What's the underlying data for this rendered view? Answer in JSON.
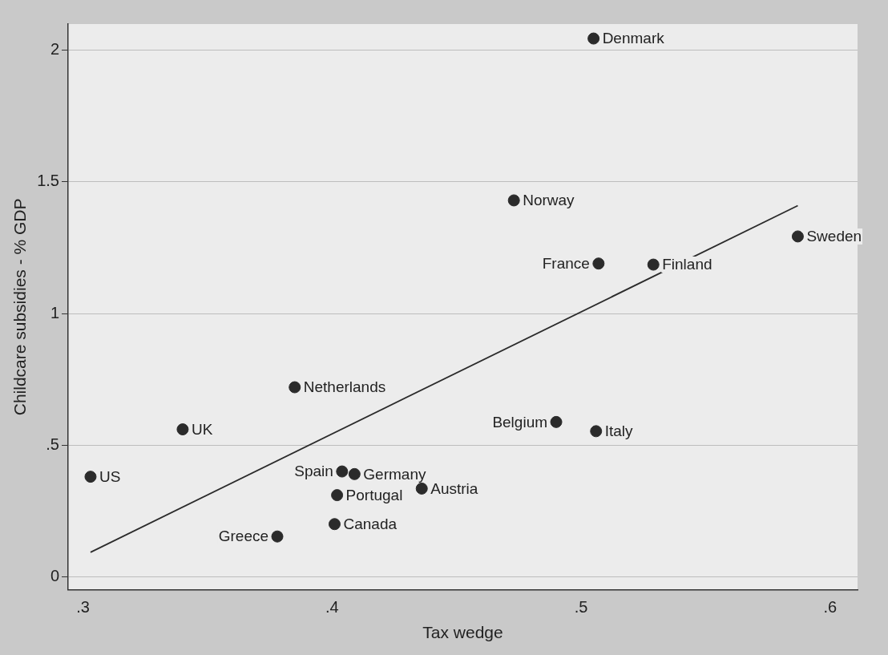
{
  "chart_data": {
    "type": "scatter",
    "xlabel": "Tax wedge",
    "ylabel": "Childcare subsidies - % GDP",
    "series": [
      {
        "color": "#2b2b2b",
        "x": [
          0.303,
          0.34,
          0.385,
          0.404,
          0.409,
          0.402,
          0.436,
          0.401,
          0.378,
          0.505,
          0.473,
          0.587,
          0.507,
          0.529,
          0.49,
          0.506
        ],
        "values": [
          0.38,
          0.56,
          0.72,
          0.4,
          0.39,
          0.31,
          0.335,
          0.2,
          0.153,
          2.045,
          1.43,
          1.293,
          1.19,
          1.186,
          0.588,
          0.553
        ],
        "value_labels": [
          "US",
          "UK",
          "Netherlands",
          "Spain",
          "Germany",
          "Portugal",
          "Austria",
          "Canada",
          "Greece",
          "Denmark",
          "Norway",
          "Sweden",
          "France",
          "Finland",
          "Belgium",
          "Italy"
        ]
      },
      {
        "type": "line",
        "color": "#2b2b2b",
        "x": [
          0.303,
          0.587
        ],
        "values": [
          0.093,
          1.41
        ],
        "marker": "none"
      }
    ],
    "xlim": [
      0.294,
      0.611
    ],
    "ylim": [
      -0.05,
      2.1
    ],
    "xticks": [
      {
        "value": 0.3,
        "label": ".3"
      },
      {
        "value": 0.4,
        "label": ".4"
      },
      {
        "value": 0.5,
        "label": ".5"
      },
      {
        "value": 0.6,
        "label": ".6"
      }
    ],
    "yticks": [
      0,
      {
        "value": 0.5,
        "label": ".5"
      },
      1,
      {
        "value": 1.5,
        "label": "1.5"
      },
      2
    ],
    "grid": "y",
    "legend": false,
    "marker": "circle"
  }
}
